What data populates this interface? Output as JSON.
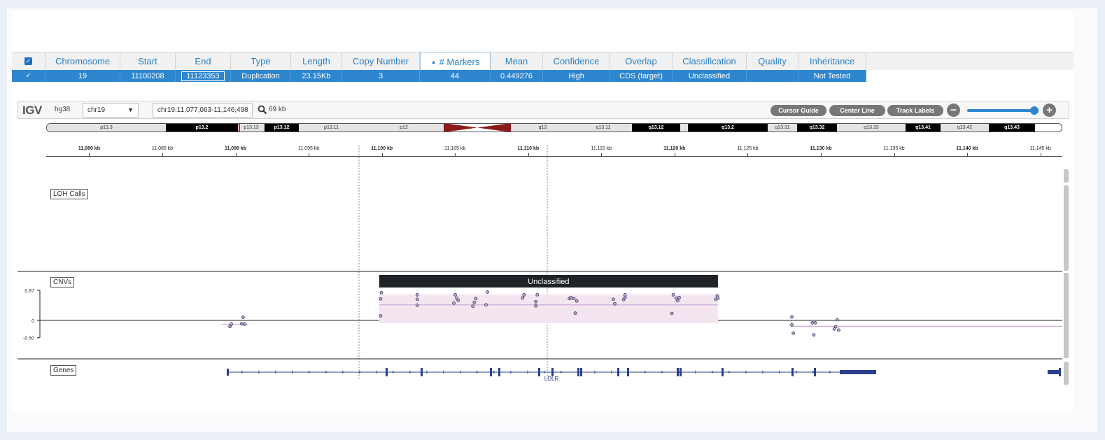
{
  "table": {
    "select_all_checked": true,
    "columns": [
      "Chromosome",
      "Start",
      "End",
      "Type",
      "Length",
      "Copy Number",
      "# Markers",
      "Mean",
      "Confidence",
      "Overlap",
      "Classification",
      "Quality",
      "Inheritance"
    ],
    "sorted_column": "# Markers",
    "sort_direction": "ascending",
    "rows": [
      {
        "selected": true,
        "Chromosome": "19",
        "Start": "11100208",
        "End": "11123353",
        "Type": "Duplication",
        "Length": "23.15Kb",
        "Copy Number": "3",
        "# Markers": "44",
        "Mean": "0.449276",
        "Confidence": "High",
        "Overlap": "CDS (target)",
        "Classification": "Unclassified",
        "Quality": "",
        "Inheritance": "Not Tested"
      }
    ]
  },
  "igv": {
    "logo": "IGV",
    "genome": "hg38",
    "chromosome": "chr19",
    "locus": "chr19:11,077,063-11,146,498",
    "window_size": "69 kb",
    "buttons": [
      "Cursor Guide",
      "Center Line",
      "Track Labels"
    ],
    "zoom_level": 0.95,
    "ideogram": [
      {
        "name": "p13.3",
        "stain": "light"
      },
      {
        "name": "p13.2",
        "stain": "dark"
      },
      {
        "name": "p13.13",
        "stain": "light"
      },
      {
        "name": "p13.12",
        "stain": "dark"
      },
      {
        "name": "p13.11",
        "stain": "light"
      },
      {
        "name": "p12",
        "stain": "light"
      },
      {
        "name": "",
        "stain": "centromere"
      },
      {
        "name": "q12",
        "stain": "light"
      },
      {
        "name": "q13.11",
        "stain": "light"
      },
      {
        "name": "q13.12",
        "stain": "dark"
      },
      {
        "name": "",
        "stain": "light"
      },
      {
        "name": "q13.2",
        "stain": "dark"
      },
      {
        "name": "q13.31",
        "stain": "light"
      },
      {
        "name": "q13.32",
        "stain": "dark"
      },
      {
        "name": "q13.33",
        "stain": "light"
      },
      {
        "name": "q13.41",
        "stain": "dark"
      },
      {
        "name": "q13.42",
        "stain": "light"
      },
      {
        "name": "q13.43",
        "stain": "dark"
      }
    ],
    "ruler_labels": [
      "11,080 kb",
      "11,085 kb",
      "11,090 kb",
      "11,095 kb",
      "11,100 kb",
      "11,105 kb",
      "11,110 kb",
      "11,115 kb",
      "11,120 kb",
      "11,125 kb",
      "11,130 kb",
      "11,135 kb",
      "11,140 kb",
      "11,145 kb"
    ],
    "tracks": {
      "loh": {
        "label": "LOH Calls"
      },
      "cnv": {
        "label": "CNVs",
        "y_ticks": [
          "0.87",
          "0",
          "-0.50"
        ],
        "segment_label": "Unclassified",
        "segment_start_kb": 11100.2,
        "segment_end_kb": 11123.35,
        "segment_mean": 0.449276,
        "segment_colors": {
          "header": "#1f2226",
          "fill": "#f4e6f0",
          "line": "#c9a6d6"
        }
      },
      "genes": {
        "label": "Genes",
        "gene_name": "LDLR",
        "color": "#2b3f8c"
      }
    }
  }
}
